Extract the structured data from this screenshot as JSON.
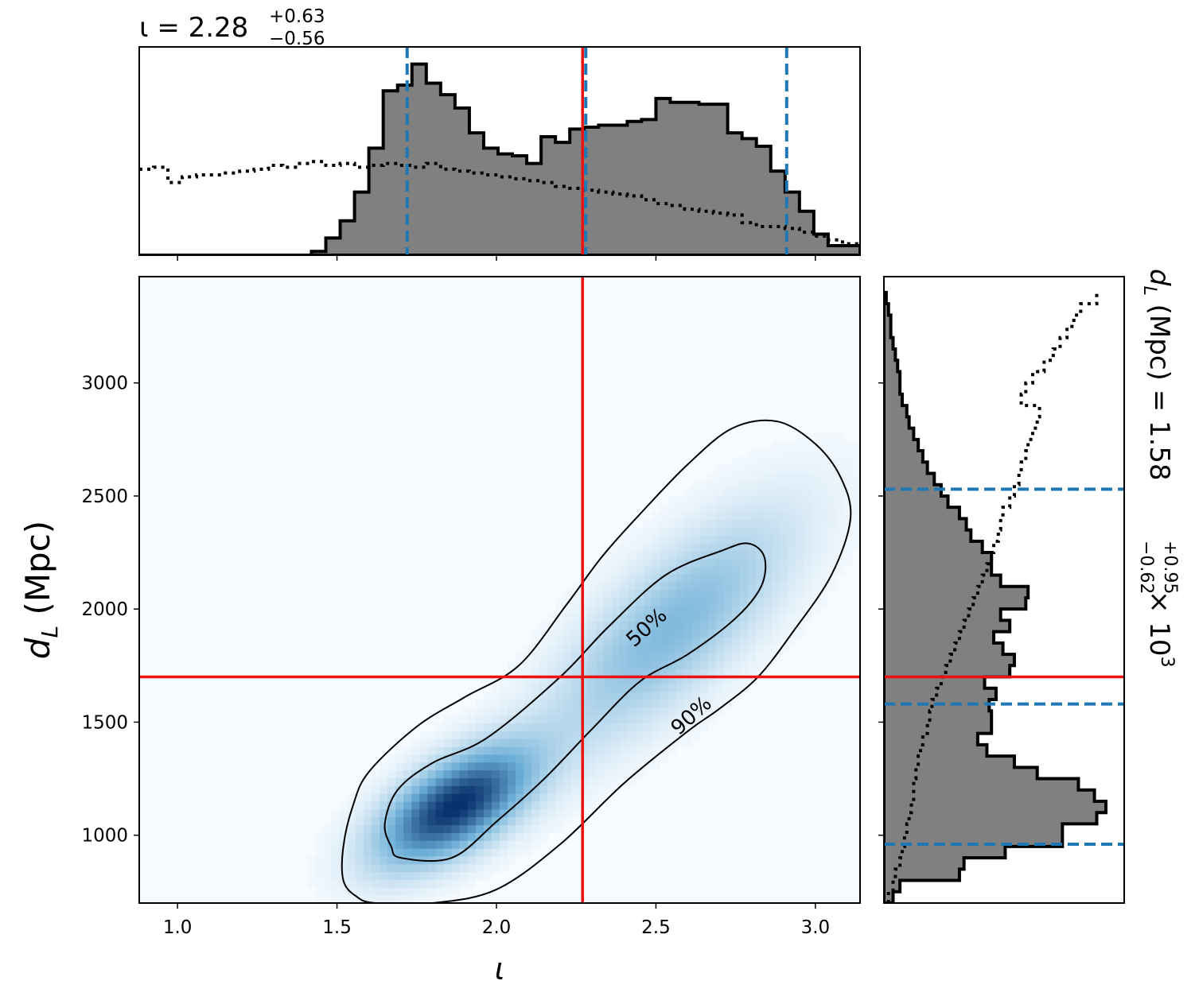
{
  "chart_data": [
    {
      "type": "histogram",
      "panel": "top-marginal",
      "title": {
        "prefix": "ι = 2.28",
        "sup": "+0.63",
        "sub": "−0.56"
      },
      "xlim": [
        0.88,
        3.14
      ],
      "ylim": [
        0,
        1.0
      ],
      "bin_edges": [
        0.88,
        0.925,
        0.97,
        1.015,
        1.06,
        1.105,
        1.15,
        1.195,
        1.24,
        1.285,
        1.33,
        1.375,
        1.42,
        1.465,
        1.51,
        1.555,
        1.6,
        1.645,
        1.69,
        1.735,
        1.78,
        1.825,
        1.87,
        1.915,
        1.96,
        2.005,
        2.05,
        2.095,
        2.14,
        2.185,
        2.23,
        2.275,
        2.32,
        2.365,
        2.41,
        2.455,
        2.5,
        2.545,
        2.59,
        2.635,
        2.68,
        2.725,
        2.77,
        2.815,
        2.86,
        2.905,
        2.95,
        2.995,
        3.04,
        3.085,
        3.14
      ],
      "posterior_counts": [
        0,
        0,
        0,
        0,
        0,
        0,
        0,
        0,
        0,
        0,
        0,
        0,
        0.02,
        0.09,
        0.18,
        0.33,
        0.56,
        0.86,
        0.89,
        1.0,
        0.9,
        0.84,
        0.77,
        0.64,
        0.56,
        0.53,
        0.52,
        0.48,
        0.62,
        0.59,
        0.66,
        0.67,
        0.68,
        0.68,
        0.7,
        0.71,
        0.82,
        0.8,
        0.8,
        0.79,
        0.79,
        0.64,
        0.61,
        0.57,
        0.44,
        0.33,
        0.23,
        0.11,
        0.05,
        0.05
      ],
      "prior_counts": [
        0.45,
        0.46,
        0.38,
        0.41,
        0.42,
        0.42,
        0.43,
        0.44,
        0.45,
        0.47,
        0.46,
        0.48,
        0.49,
        0.47,
        0.48,
        0.46,
        0.47,
        0.48,
        0.47,
        0.46,
        0.48,
        0.45,
        0.44,
        0.43,
        0.42,
        0.41,
        0.4,
        0.39,
        0.38,
        0.36,
        0.35,
        0.34,
        0.33,
        0.32,
        0.31,
        0.29,
        0.27,
        0.26,
        0.24,
        0.23,
        0.22,
        0.21,
        0.17,
        0.15,
        0.15,
        0.14,
        0.12,
        0.1,
        0.08,
        0.06
      ],
      "median": 2.28,
      "interval": [
        1.72,
        2.91
      ],
      "truth": 2.27,
      "xticks": [
        1.0,
        1.5,
        2.0,
        2.5,
        3.0
      ]
    },
    {
      "type": "heatmap",
      "panel": "joint",
      "xlabel": "ι",
      "ylabel": "d_L (Mpc)",
      "ylabel_main": "d",
      "ylabel_sub": "L",
      "ylabel_rest": " (Mpc)",
      "xlim": [
        0.88,
        3.14
      ],
      "ylim": [
        700,
        3470
      ],
      "xtick_labels": [
        "1.0",
        "1.5",
        "2.0",
        "2.5",
        "3.0"
      ],
      "xticks": [
        1.0,
        1.5,
        2.0,
        2.5,
        3.0
      ],
      "ytick_labels": [
        "1000",
        "1500",
        "2000",
        "2500",
        "3000"
      ],
      "yticks": [
        1000,
        1500,
        2000,
        2500,
        3000
      ],
      "truth": {
        "x": 2.27,
        "y": 1700
      },
      "density_peaks": [
        {
          "x": 1.87,
          "y": 1130,
          "weight": 1.0
        },
        {
          "x": 2.55,
          "y": 1920,
          "weight": 0.42
        }
      ],
      "contours": [
        {
          "label": "50%",
          "label_at": {
            "x": 2.47,
            "y": 1920
          },
          "path": [
            [
              1.7,
              900
            ],
            [
              1.86,
              900
            ],
            [
              2.0,
              1060
            ],
            [
              2.15,
              1250
            ],
            [
              2.3,
              1470
            ],
            [
              2.45,
              1680
            ],
            [
              2.6,
              1800
            ],
            [
              2.75,
              1960
            ],
            [
              2.83,
              2100
            ],
            [
              2.84,
              2230
            ],
            [
              2.79,
              2290
            ],
            [
              2.71,
              2260
            ],
            [
              2.53,
              2150
            ],
            [
              2.35,
              1920
            ],
            [
              2.2,
              1700
            ],
            [
              1.97,
              1430
            ],
            [
              1.8,
              1320
            ],
            [
              1.69,
              1200
            ],
            [
              1.65,
              1050
            ],
            [
              1.67,
              950
            ]
          ]
        },
        {
          "label": "90%",
          "label_at": {
            "x": 2.61,
            "y": 1530
          },
          "path": [
            [
              1.62,
              700
            ],
            [
              1.8,
              700
            ],
            [
              2.0,
              760
            ],
            [
              2.2,
              960
            ],
            [
              2.4,
              1230
            ],
            [
              2.6,
              1460
            ],
            [
              2.7,
              1560
            ],
            [
              2.82,
              1700
            ],
            [
              2.93,
              1900
            ],
            [
              3.05,
              2150
            ],
            [
              3.11,
              2400
            ],
            [
              3.08,
              2580
            ],
            [
              3.0,
              2730
            ],
            [
              2.88,
              2830
            ],
            [
              2.74,
              2800
            ],
            [
              2.6,
              2640
            ],
            [
              2.45,
              2420
            ],
            [
              2.33,
              2230
            ],
            [
              2.22,
              2020
            ],
            [
              2.07,
              1750
            ],
            [
              1.9,
              1610
            ],
            [
              1.75,
              1480
            ],
            [
              1.6,
              1280
            ],
            [
              1.55,
              1130
            ],
            [
              1.52,
              950
            ],
            [
              1.52,
              800
            ],
            [
              1.56,
              730
            ]
          ]
        }
      ]
    },
    {
      "type": "histogram",
      "panel": "right-marginal",
      "orientation": "horizontal",
      "title": {
        "prefix": "d",
        "sub_var": "L",
        "middle": " (Mpc) = 1.58",
        "sup": "+0.95",
        "sub": "−0.62",
        "suffix": " × 10",
        "exp": "3"
      },
      "ylim": [
        700,
        3470
      ],
      "xlim": [
        0,
        1.05
      ],
      "bin_edges": [
        700,
        750,
        800,
        850,
        900,
        950,
        1000,
        1050,
        1100,
        1150,
        1200,
        1250,
        1300,
        1350,
        1400,
        1450,
        1500,
        1550,
        1600,
        1650,
        1700,
        1750,
        1800,
        1850,
        1900,
        1950,
        2000,
        2050,
        2100,
        2150,
        2200,
        2250,
        2300,
        2350,
        2400,
        2450,
        2500,
        2550,
        2600,
        2650,
        2700,
        2750,
        2800,
        2850,
        2900,
        2950,
        3000,
        3050,
        3100,
        3150,
        3200,
        3250,
        3300,
        3350,
        3400
      ],
      "posterior_counts": [
        0.04,
        0.07,
        0.33,
        0.35,
        0.53,
        0.78,
        0.78,
        0.93,
        0.97,
        0.92,
        0.85,
        0.67,
        0.57,
        0.45,
        0.41,
        0.47,
        0.47,
        0.46,
        0.49,
        0.44,
        0.55,
        0.57,
        0.52,
        0.48,
        0.55,
        0.51,
        0.62,
        0.63,
        0.51,
        0.47,
        0.47,
        0.43,
        0.38,
        0.36,
        0.33,
        0.28,
        0.25,
        0.22,
        0.19,
        0.17,
        0.15,
        0.13,
        0.11,
        0.1,
        0.08,
        0.07,
        0.07,
        0.06,
        0.05,
        0.04,
        0.03,
        0.03,
        0.02,
        0.01
      ],
      "prior_counts": [
        0.02,
        0.04,
        0.05,
        0.07,
        0.08,
        0.09,
        0.1,
        0.11,
        0.12,
        0.13,
        0.13,
        0.14,
        0.15,
        0.16,
        0.17,
        0.19,
        0.2,
        0.21,
        0.23,
        0.25,
        0.27,
        0.29,
        0.31,
        0.33,
        0.35,
        0.37,
        0.39,
        0.41,
        0.43,
        0.45,
        0.47,
        0.48,
        0.5,
        0.51,
        0.52,
        0.55,
        0.57,
        0.59,
        0.6,
        0.62,
        0.63,
        0.65,
        0.67,
        0.68,
        0.6,
        0.62,
        0.65,
        0.7,
        0.74,
        0.77,
        0.8,
        0.83,
        0.86,
        0.93
      ],
      "median": 1580,
      "interval": [
        960,
        2530
      ],
      "truth": 1700,
      "yticks": [
        1000,
        1500,
        2000,
        2500,
        3000
      ]
    }
  ],
  "colors": {
    "truth_line": "#ee1111",
    "interval_line": "#1f77b4",
    "histogram_fill": "#808080",
    "histogram_edge": "#000000",
    "heatmap_low": "#f7fbff",
    "heatmap_mid": "#6baed6",
    "heatmap_high": "#08306b",
    "contour": "#000000"
  }
}
